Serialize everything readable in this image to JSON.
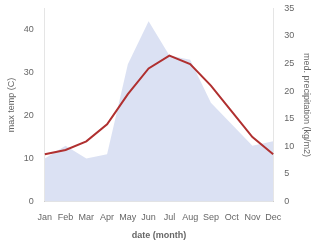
{
  "chart_data": {
    "type": "line",
    "xlabel": "date (month)",
    "ylabel": "max temp (C)",
    "y2label": "med. precipitation (kg/m2)",
    "categories": [
      "Jan",
      "Feb",
      "Mar",
      "Apr",
      "May",
      "Jun",
      "Jul",
      "Aug",
      "Sep",
      "Oct",
      "Nov",
      "Dec"
    ],
    "series": [
      {
        "type": "area",
        "color": "#b8c4e8",
        "values": [
          10,
          13,
          10,
          11,
          32,
          42,
          34,
          33,
          23,
          18,
          13,
          14
        ]
      },
      {
        "type": "line",
        "color": "#b03030",
        "values": [
          11,
          12,
          14,
          18,
          25,
          31,
          34,
          32,
          27,
          21,
          15,
          11
        ]
      }
    ],
    "ylim": [
      0,
      45
    ],
    "yticks": [
      0,
      10,
      20,
      30,
      40
    ],
    "y2lim": [
      0,
      35
    ],
    "y2ticks": [
      0,
      5,
      10,
      15,
      20,
      25,
      30,
      35
    ],
    "grid": false
  }
}
